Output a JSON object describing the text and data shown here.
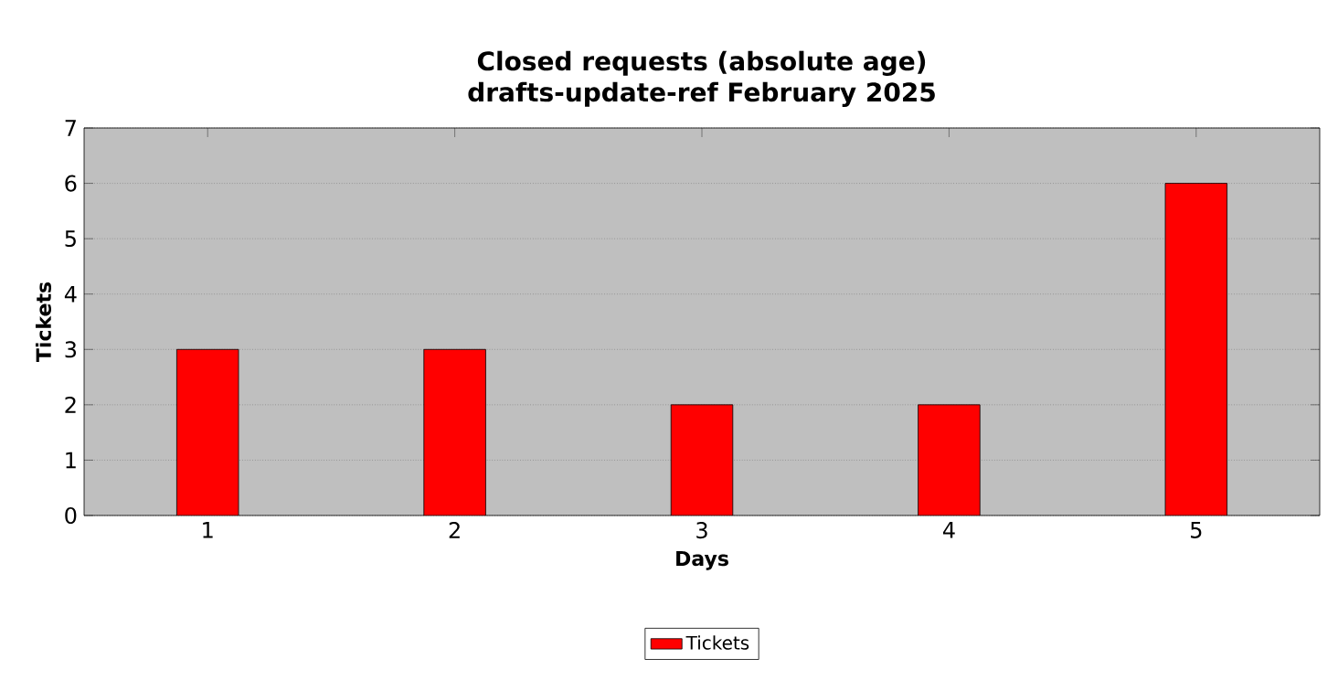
{
  "chart_data": {
    "type": "bar",
    "title": "Closed requests (absolute age)",
    "subtitle": "drafts-update-ref February 2025",
    "xlabel": "Days",
    "ylabel": "Tickets",
    "x": [
      1,
      2,
      3,
      4,
      5
    ],
    "series": [
      {
        "name": "Tickets",
        "color": "#ff0000",
        "values": [
          3,
          3,
          2,
          2,
          6
        ]
      }
    ],
    "xlim": [
      0.5,
      5.5
    ],
    "xticks": [
      1,
      2,
      3,
      4,
      5
    ],
    "ylim": [
      0,
      7
    ],
    "yticks": [
      0,
      1,
      2,
      3,
      4,
      5,
      6,
      7
    ],
    "grid": "y",
    "legend": "bottom"
  }
}
